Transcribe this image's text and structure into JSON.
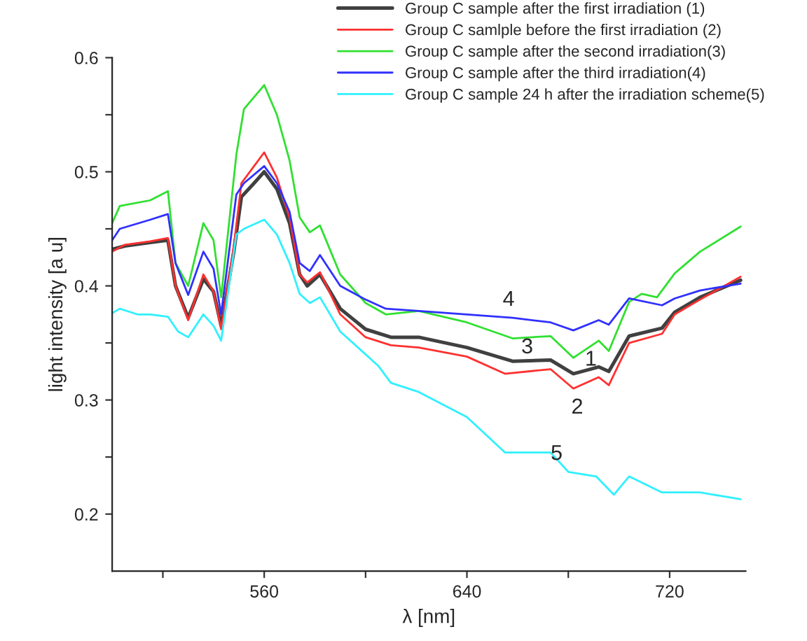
{
  "chart_data": {
    "type": "line",
    "xlabel": "λ [nm]",
    "ylabel": "light intensity [a u]",
    "xlim": [
      500,
      750
    ],
    "ylim": [
      0.15,
      0.6
    ],
    "xticks": [
      {
        "value": 520,
        "label": null
      },
      560,
      {
        "value": 600,
        "label": null
      },
      640,
      {
        "value": 680,
        "label": null
      },
      720
    ],
    "yticks": [
      0.2,
      {
        "value": 0.25,
        "label": null
      },
      0.3,
      {
        "value": 0.35,
        "label": null
      },
      0.4,
      {
        "value": 0.45,
        "label": null
      },
      0.5,
      {
        "value": 0.55,
        "label": null
      },
      0.6
    ],
    "grid": false,
    "legend": "top right",
    "marker": "none",
    "line_style": "solid",
    "series": [
      {
        "name": "Group C sample after the first irradiation (1)",
        "color": "#404040",
        "x": [
          500,
          505,
          515,
          522,
          525,
          530,
          536,
          540,
          543,
          548,
          551,
          556,
          560,
          565,
          570,
          574,
          577,
          582,
          590,
          600,
          610,
          621,
          640,
          658,
          673,
          682,
          692,
          696,
          704,
          717,
          722,
          732,
          748
        ],
        "values": [
          0.432,
          0.435,
          0.438,
          0.44,
          0.4,
          0.372,
          0.406,
          0.395,
          0.365,
          0.43,
          0.478,
          0.49,
          0.5,
          0.485,
          0.455,
          0.41,
          0.4,
          0.41,
          0.38,
          0.362,
          0.355,
          0.355,
          0.346,
          0.334,
          0.335,
          0.323,
          0.329,
          0.325,
          0.356,
          0.363,
          0.377,
          0.39,
          0.405
        ]
      },
      {
        "name": "Group C samlple before the first irradiation (2)",
        "color": "#ff3030",
        "x": [
          500,
          505,
          515,
          522,
          525,
          530,
          536,
          540,
          543,
          548,
          551,
          556,
          560,
          565,
          570,
          574,
          577,
          582,
          590,
          600,
          610,
          621,
          640,
          655,
          673,
          682,
          692,
          696,
          704,
          717,
          722,
          732,
          748
        ],
        "values": [
          0.43,
          0.436,
          0.439,
          0.442,
          0.4,
          0.37,
          0.41,
          0.395,
          0.362,
          0.435,
          0.49,
          0.505,
          0.517,
          0.495,
          0.46,
          0.41,
          0.403,
          0.412,
          0.375,
          0.355,
          0.348,
          0.346,
          0.338,
          0.323,
          0.327,
          0.31,
          0.32,
          0.313,
          0.35,
          0.358,
          0.375,
          0.388,
          0.408
        ]
      },
      {
        "name": "Group C sample after the second irradiation(3)",
        "color": "#30e030",
        "x": [
          500,
          503,
          515,
          522,
          525,
          530,
          536,
          540,
          543,
          549,
          552,
          560,
          565,
          570,
          574,
          578,
          582,
          590,
          600,
          608,
          621,
          640,
          658,
          673,
          682,
          692,
          696,
          704,
          709,
          715,
          722,
          732,
          748
        ],
        "values": [
          0.455,
          0.47,
          0.475,
          0.483,
          0.42,
          0.4,
          0.455,
          0.44,
          0.39,
          0.515,
          0.555,
          0.576,
          0.55,
          0.51,
          0.46,
          0.447,
          0.453,
          0.41,
          0.385,
          0.375,
          0.378,
          0.368,
          0.354,
          0.356,
          0.337,
          0.352,
          0.343,
          0.386,
          0.393,
          0.39,
          0.411,
          0.43,
          0.452
        ]
      },
      {
        "name": "Group C sample after the third irradiation(4)",
        "color": "#3030ff",
        "x": [
          500,
          503,
          515,
          522,
          525,
          530,
          536,
          540,
          543,
          549,
          552,
          560,
          565,
          570,
          574,
          578,
          582,
          590,
          600,
          608,
          621,
          640,
          658,
          673,
          682,
          692,
          696,
          704,
          717,
          722,
          732,
          748
        ],
        "values": [
          0.44,
          0.45,
          0.458,
          0.463,
          0.42,
          0.392,
          0.43,
          0.415,
          0.375,
          0.48,
          0.49,
          0.505,
          0.49,
          0.465,
          0.42,
          0.413,
          0.427,
          0.4,
          0.388,
          0.38,
          0.378,
          0.375,
          0.372,
          0.368,
          0.361,
          0.37,
          0.366,
          0.389,
          0.383,
          0.389,
          0.396,
          0.402
        ]
      },
      {
        "name": "Group C sample 24 h after the irradiation scheme(5)",
        "color": "#30f0ff",
        "x": [
          500,
          503,
          510,
          515,
          522,
          526,
          530,
          536,
          540,
          543,
          549,
          552,
          560,
          565,
          570,
          574,
          578,
          582,
          590,
          600,
          605,
          610,
          621,
          640,
          655,
          673,
          680,
          691,
          698,
          704,
          717,
          732,
          748
        ],
        "values": [
          0.376,
          0.38,
          0.375,
          0.375,
          0.373,
          0.36,
          0.355,
          0.375,
          0.365,
          0.352,
          0.445,
          0.45,
          0.458,
          0.445,
          0.42,
          0.393,
          0.385,
          0.39,
          0.36,
          0.34,
          0.33,
          0.315,
          0.307,
          0.285,
          0.254,
          0.254,
          0.237,
          0.233,
          0.217,
          0.233,
          0.219,
          0.219,
          0.213
        ]
      }
    ],
    "annotations": [
      {
        "text": "4",
        "x": 658,
        "y": 0.372
      },
      {
        "text": "3",
        "x": 673,
        "y": 0.356
      },
      {
        "text": "1",
        "x": 682,
        "y": 0.323
      },
      {
        "text": "2",
        "x": 682,
        "y": 0.31
      },
      {
        "text": "5",
        "x": 680,
        "y": 0.237
      }
    ]
  }
}
